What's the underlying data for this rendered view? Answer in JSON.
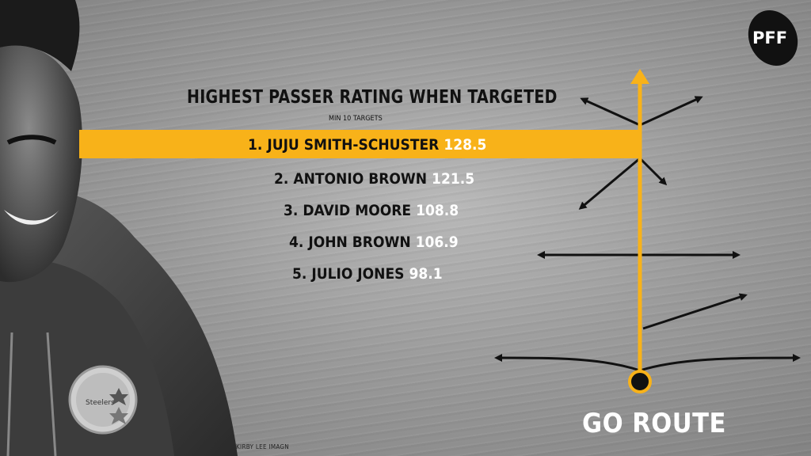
{
  "title": "HIGHEST PASSER RATING WHEN TARGETED",
  "subtitle": "MIN 10 TARGETS",
  "rankings": [
    {
      "label": "1. JUJU SMITH-SCHUSTER",
      "value": "128.5"
    },
    {
      "label": "2. ANTONIO BROWN",
      "value": "121.5"
    },
    {
      "label": "3. DAVID MOORE",
      "value": "108.8"
    },
    {
      "label": "4. JOHN BROWN",
      "value": "106.9"
    },
    {
      "label": "5. JULIO JONES",
      "value": "98.1"
    }
  ],
  "route_label": "GO ROUTE",
  "logo_text": "PFF",
  "photo_credit": "KIRBY LEE IMAGN",
  "team_logo_text": "Steelers",
  "colors": {
    "accent": "#f8b219",
    "text_dark": "#111111",
    "value_text": "#ffffff"
  }
}
